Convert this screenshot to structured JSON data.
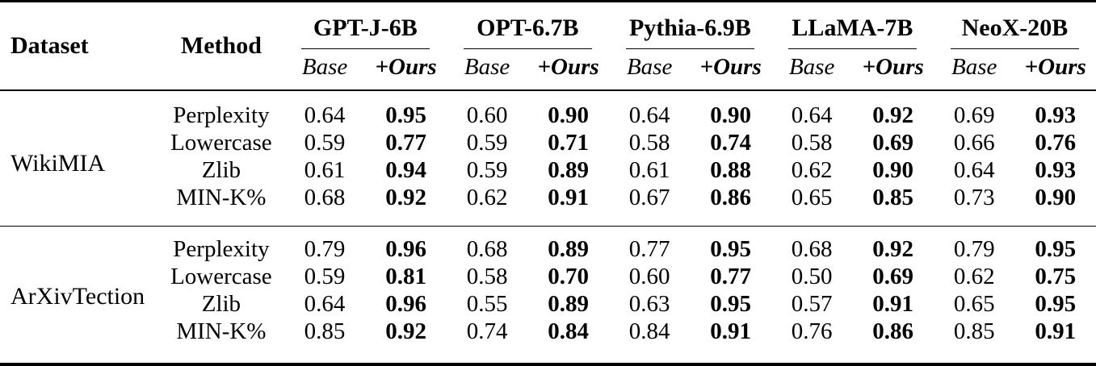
{
  "colors": {
    "text": "#000000",
    "background": "#ffffff",
    "rule": "#000000"
  },
  "table": {
    "header": {
      "dataset": "Dataset",
      "method": "Method",
      "models": [
        "GPT-J-6B",
        "OPT-6.7B",
        "Pythia-6.9B",
        "LLaMA-7B",
        "NeoX-20B"
      ],
      "base_label": "Base",
      "ours_label": "+Ours"
    },
    "sections": [
      {
        "dataset": "WikiMIA",
        "rows": [
          {
            "method": "Perplexity",
            "values": [
              "0.64",
              "0.95",
              "0.60",
              "0.90",
              "0.64",
              "0.90",
              "0.64",
              "0.92",
              "0.69",
              "0.93"
            ]
          },
          {
            "method": "Lowercase",
            "values": [
              "0.59",
              "0.77",
              "0.59",
              "0.71",
              "0.58",
              "0.74",
              "0.58",
              "0.69",
              "0.66",
              "0.76"
            ]
          },
          {
            "method": "Zlib",
            "values": [
              "0.61",
              "0.94",
              "0.59",
              "0.89",
              "0.61",
              "0.88",
              "0.62",
              "0.90",
              "0.64",
              "0.93"
            ]
          },
          {
            "method": "MIN-K%",
            "values": [
              "0.68",
              "0.92",
              "0.62",
              "0.91",
              "0.67",
              "0.86",
              "0.65",
              "0.85",
              "0.73",
              "0.90"
            ]
          }
        ]
      },
      {
        "dataset": "ArXivTection",
        "rows": [
          {
            "method": "Perplexity",
            "values": [
              "0.79",
              "0.96",
              "0.68",
              "0.89",
              "0.77",
              "0.95",
              "0.68",
              "0.92",
              "0.79",
              "0.95"
            ]
          },
          {
            "method": "Lowercase",
            "values": [
              "0.59",
              "0.81",
              "0.58",
              "0.70",
              "0.60",
              "0.77",
              "0.50",
              "0.69",
              "0.62",
              "0.75"
            ]
          },
          {
            "method": "Zlib",
            "values": [
              "0.64",
              "0.96",
              "0.55",
              "0.89",
              "0.63",
              "0.95",
              "0.57",
              "0.91",
              "0.65",
              "0.95"
            ]
          },
          {
            "method": "MIN-K%",
            "values": [
              "0.85",
              "0.92",
              "0.74",
              "0.84",
              "0.84",
              "0.91",
              "0.76",
              "0.86",
              "0.85",
              "0.91"
            ]
          }
        ]
      }
    ]
  }
}
